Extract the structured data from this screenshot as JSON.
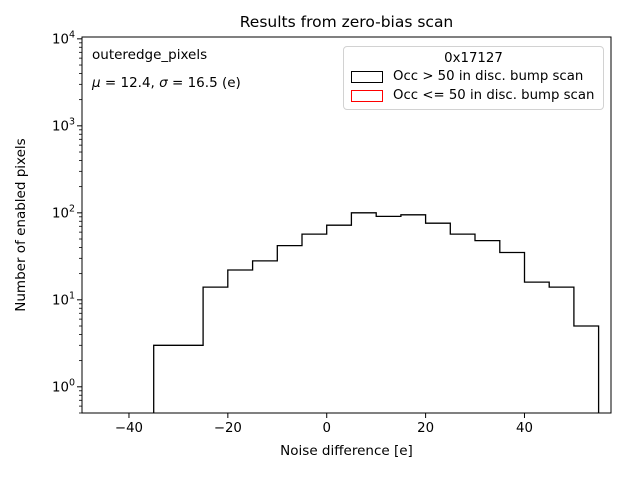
{
  "title": "Results from zero-bias scan",
  "annotation": {
    "line1": "outeredge_pixels",
    "mu": "μ",
    "mu_rest": " = 12.4, ",
    "sigma": "σ",
    "sigma_rest": " = 16.5 (e)"
  },
  "legend": {
    "title": "0x17127",
    "entries": [
      {
        "label": "Occ > 50 in disc. bump scan",
        "color": "#000000"
      },
      {
        "label": "Occ <= 50 in disc. bump scan",
        "color": "#ff0000"
      }
    ]
  },
  "chart_data": {
    "type": "bar",
    "subtype": "step-histogram",
    "title": "Results from zero-bias scan",
    "xlabel": "Noise difference [e]",
    "ylabel": "Number of enabled pixels",
    "yscale": "log",
    "xlim": [
      -49.5,
      57.5
    ],
    "ylim": [
      0.5,
      10500
    ],
    "grid": false,
    "legend_position": "upper right",
    "bin_edges": [
      -35,
      -30,
      -25,
      -20,
      -15,
      -10,
      -5,
      0,
      5,
      10,
      15,
      20,
      25,
      30,
      35,
      40,
      45,
      50,
      55
    ],
    "series": [
      {
        "name": "Occ > 50 in disc. bump scan",
        "color": "#000000",
        "counts": [
          3,
          3,
          14,
          22,
          28,
          42,
          57,
          72,
          100,
          91,
          95,
          76,
          57,
          48,
          35,
          16,
          14,
          5
        ]
      },
      {
        "name": "Occ <= 50 in disc. bump scan",
        "color": "#ff0000",
        "counts": []
      }
    ],
    "xticks": [
      {
        "value": -40,
        "label": "−40"
      },
      {
        "value": -20,
        "label": "−20"
      },
      {
        "value": 0,
        "label": "0"
      },
      {
        "value": 20,
        "label": "20"
      },
      {
        "value": 40,
        "label": "40"
      }
    ],
    "yticks": [
      {
        "value": 1,
        "base": "10",
        "exp": "0"
      },
      {
        "value": 10,
        "base": "10",
        "exp": "1"
      },
      {
        "value": 100,
        "base": "10",
        "exp": "2"
      },
      {
        "value": 1000,
        "base": "10",
        "exp": "3"
      },
      {
        "value": 10000,
        "base": "10",
        "exp": "4"
      }
    ]
  }
}
